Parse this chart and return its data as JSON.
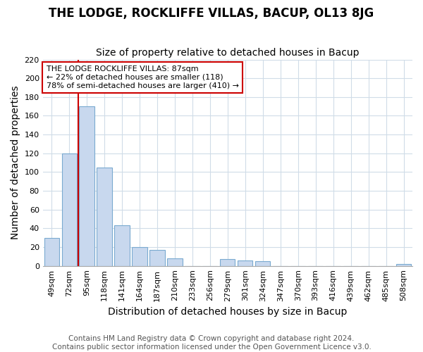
{
  "title": "THE LODGE, ROCKLIFFE VILLAS, BACUP, OL13 8JG",
  "subtitle": "Size of property relative to detached houses in Bacup",
  "xlabel": "Distribution of detached houses by size in Bacup",
  "ylabel": "Number of detached properties",
  "categories": [
    "49sqm",
    "72sqm",
    "95sqm",
    "118sqm",
    "141sqm",
    "164sqm",
    "187sqm",
    "210sqm",
    "233sqm",
    "256sqm",
    "279sqm",
    "301sqm",
    "324sqm",
    "347sqm",
    "370sqm",
    "393sqm",
    "416sqm",
    "439sqm",
    "462sqm",
    "485sqm",
    "508sqm"
  ],
  "values": [
    30,
    120,
    170,
    105,
    43,
    20,
    17,
    8,
    0,
    0,
    7,
    6,
    5,
    0,
    0,
    0,
    0,
    0,
    0,
    0,
    2
  ],
  "bar_color": "#c8d8ee",
  "bar_edge_color": "#7aaad0",
  "marker_line_color": "#cc0000",
  "annotation_text": "THE LODGE ROCKLIFFE VILLAS: 87sqm\n← 22% of detached houses are smaller (118)\n78% of semi-detached houses are larger (410) →",
  "annotation_box_color": "#ffffff",
  "annotation_box_edge": "#cc0000",
  "ylim": [
    0,
    220
  ],
  "yticks": [
    0,
    20,
    40,
    60,
    80,
    100,
    120,
    140,
    160,
    180,
    200,
    220
  ],
  "footer": "Contains HM Land Registry data © Crown copyright and database right 2024.\nContains public sector information licensed under the Open Government Licence v3.0.",
  "bg_color": "#ffffff",
  "plot_bg_color": "#ffffff",
  "grid_color": "#d0dce8",
  "title_fontsize": 12,
  "subtitle_fontsize": 10,
  "axis_label_fontsize": 10,
  "tick_fontsize": 8,
  "footer_fontsize": 7.5
}
